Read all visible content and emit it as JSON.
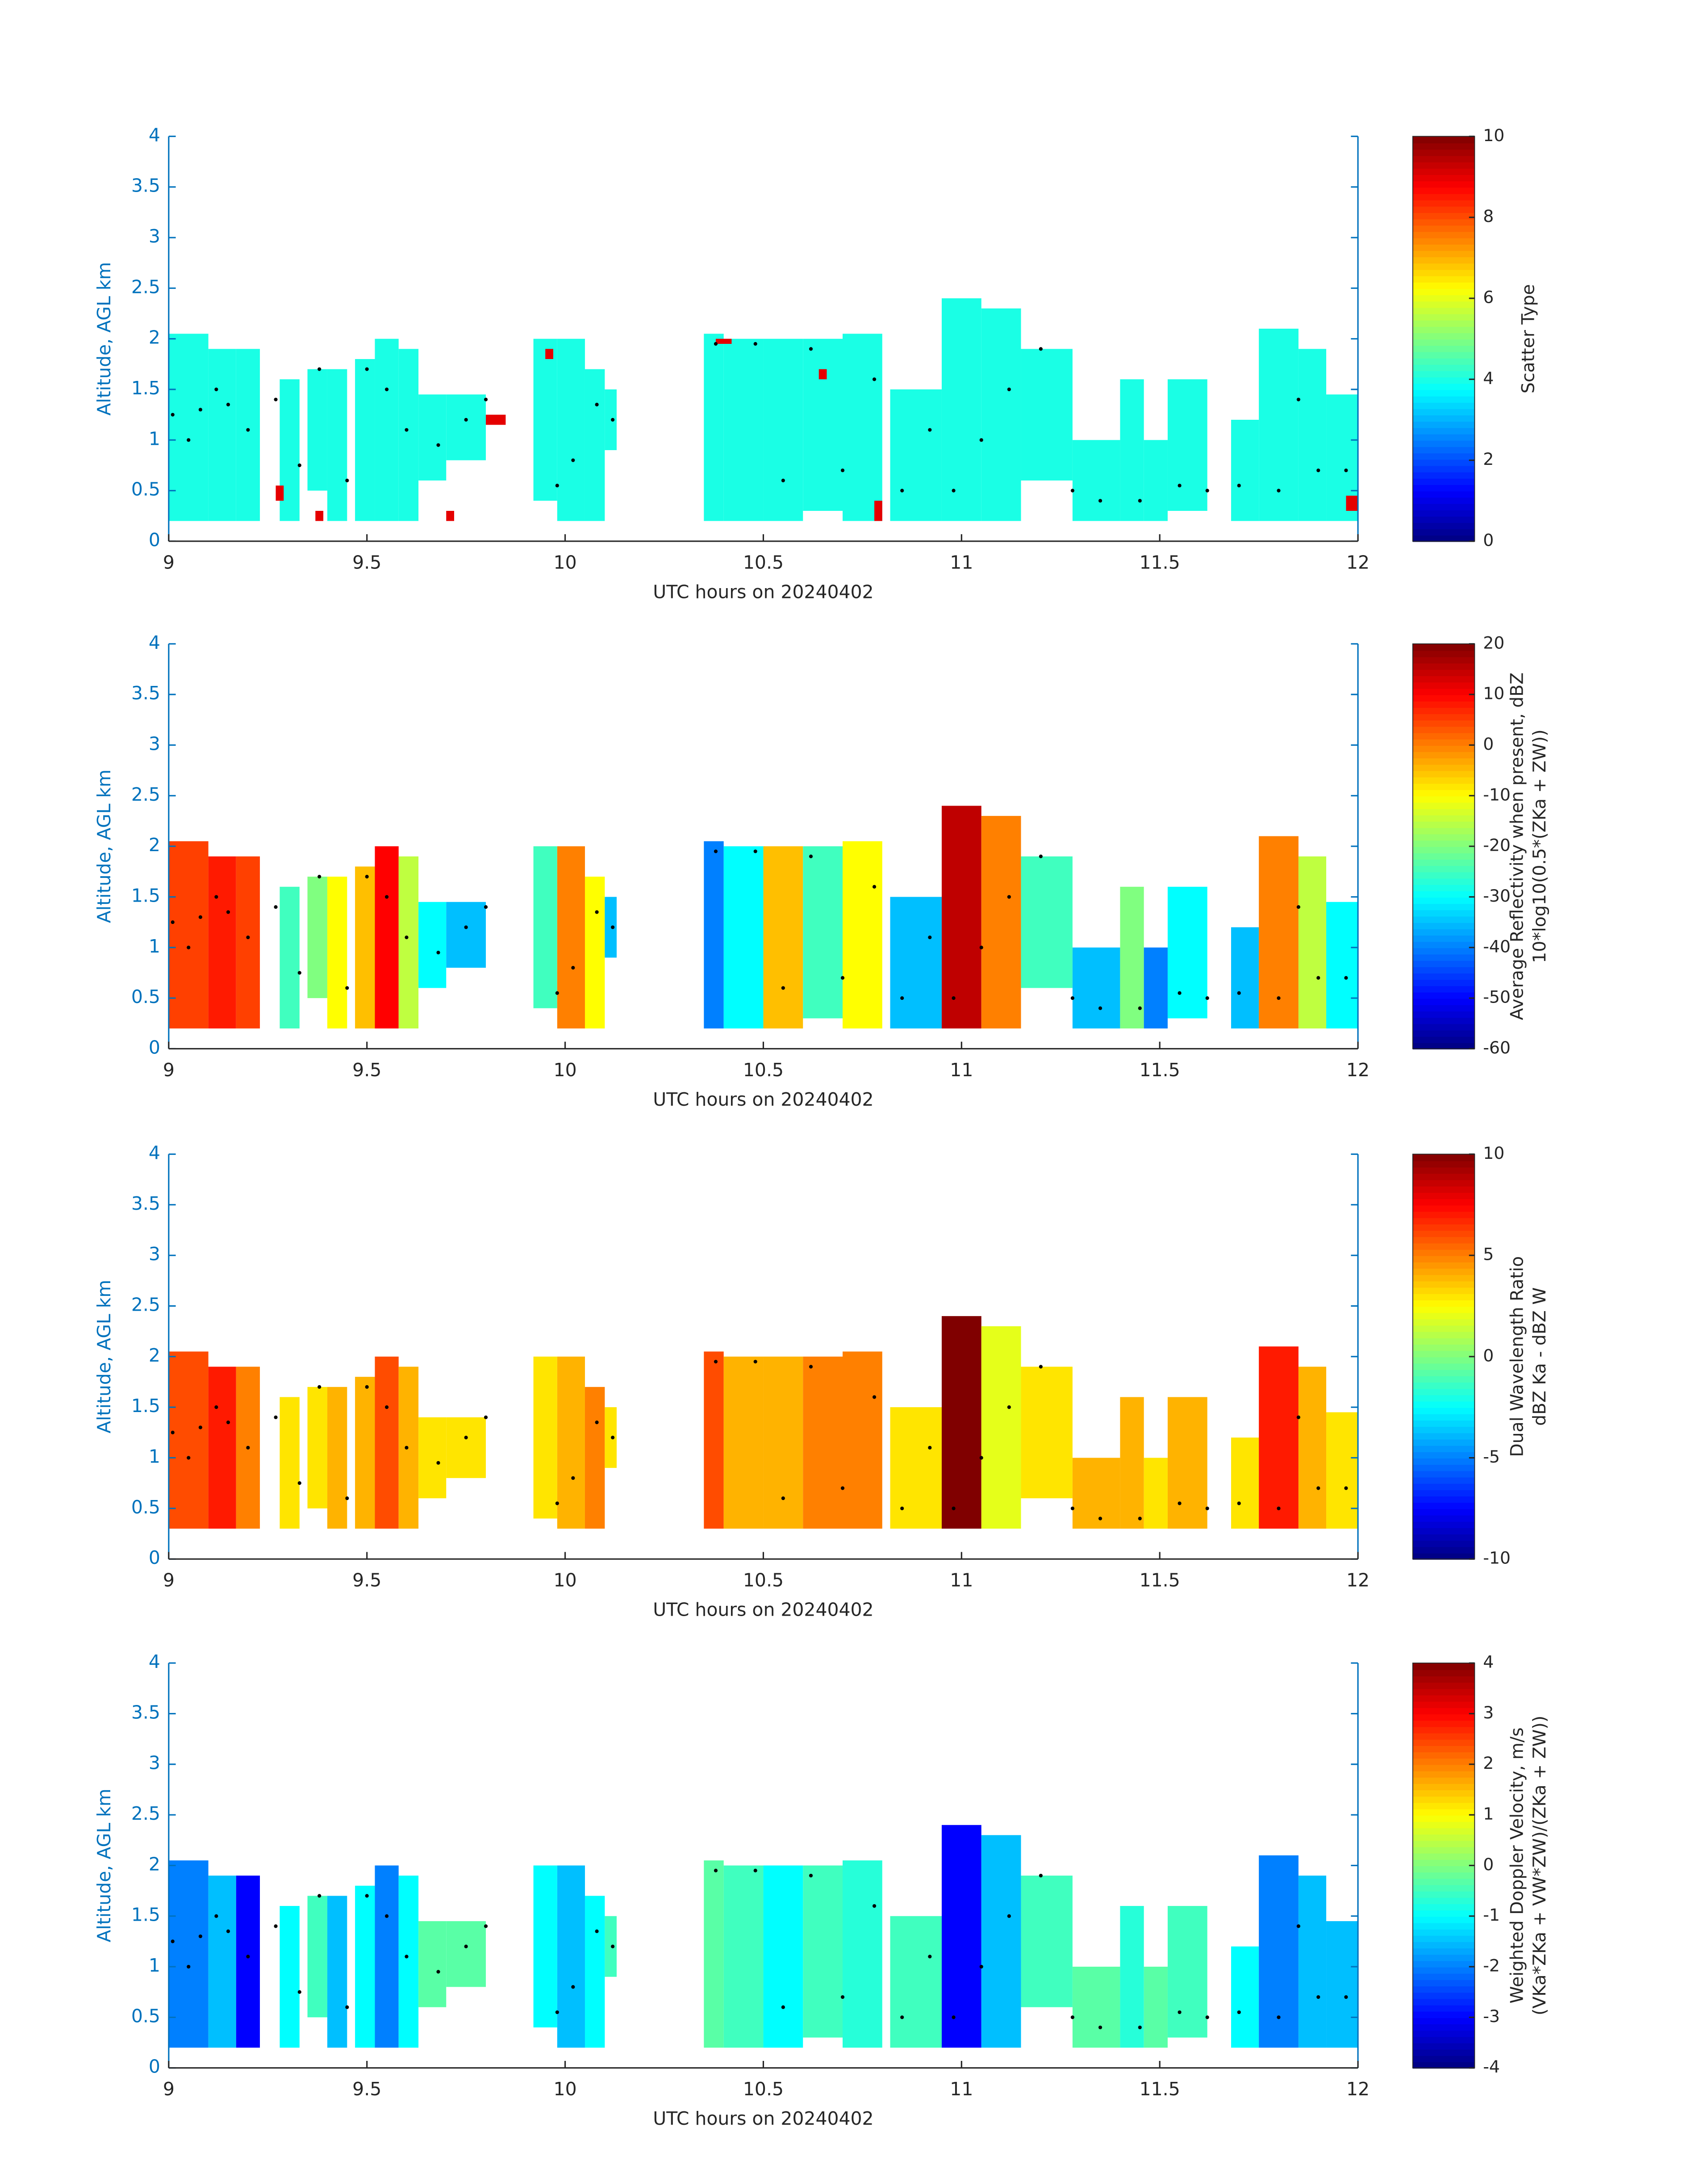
{
  "chart_data": [
    {
      "type": "heatmap",
      "xlabel": "UTC hours on 20240402",
      "ylabel": "Altitude, AGL km",
      "xlim": [
        9,
        12
      ],
      "ylim": [
        0,
        4
      ],
      "xticks": [
        9,
        9.5,
        10,
        10.5,
        11,
        11.5,
        12
      ],
      "yticks": [
        0,
        0.5,
        1,
        1.5,
        2,
        2.5,
        3,
        3.5,
        4
      ],
      "colorbar_label": [
        "Scatter Type"
      ],
      "clim": [
        0,
        10
      ],
      "cticks": [
        0,
        2,
        4,
        6,
        8,
        10
      ],
      "cells": {
        "x0": [
          9.0,
          9.1,
          9.17,
          9.28,
          9.35,
          9.4,
          9.47,
          9.52,
          9.58,
          9.63,
          9.7,
          9.92,
          9.98,
          10.05,
          10.1,
          10.35,
          10.4,
          10.5,
          10.6,
          10.7,
          10.82,
          10.95,
          11.05,
          11.15,
          11.28,
          11.4,
          11.46,
          11.52,
          11.68,
          11.75,
          11.85,
          11.92,
          9.27,
          9.37,
          9.8,
          9.95,
          10.38,
          10.64,
          10.78,
          11.97,
          9.7
        ],
        "x1": [
          9.1,
          9.17,
          9.23,
          9.33,
          9.4,
          9.45,
          9.52,
          9.58,
          9.63,
          9.7,
          9.8,
          9.98,
          10.05,
          10.1,
          10.13,
          10.4,
          10.5,
          10.6,
          10.7,
          10.8,
          10.95,
          11.05,
          11.15,
          11.28,
          11.4,
          11.46,
          11.52,
          11.62,
          11.75,
          11.85,
          11.92,
          12.0,
          9.29,
          9.39,
          9.85,
          9.97,
          10.42,
          10.66,
          10.8,
          12.0,
          9.72
        ],
        "y0": [
          0.2,
          0.2,
          0.2,
          0.2,
          0.5,
          0.2,
          0.2,
          0.2,
          0.2,
          0.6,
          0.8,
          0.4,
          0.2,
          0.2,
          0.9,
          0.2,
          0.2,
          0.2,
          0.3,
          0.2,
          0.2,
          0.2,
          0.2,
          0.6,
          0.2,
          0.2,
          0.2,
          0.3,
          0.2,
          0.2,
          0.2,
          0.2,
          0.4,
          0.2,
          1.15,
          1.8,
          1.95,
          1.6,
          0.2,
          0.3,
          0.2
        ],
        "y1": [
          2.05,
          1.9,
          1.9,
          1.6,
          1.7,
          1.7,
          1.8,
          2.0,
          1.9,
          1.45,
          1.45,
          2.0,
          2.0,
          1.7,
          1.5,
          2.05,
          2.0,
          2.0,
          2.0,
          2.05,
          1.5,
          2.4,
          2.3,
          1.9,
          1.0,
          1.6,
          1.0,
          1.6,
          1.2,
          2.1,
          1.9,
          1.45,
          0.55,
          0.3,
          1.25,
          1.9,
          2.0,
          1.7,
          0.4,
          0.45,
          0.3
        ],
        "values": [
          4,
          4,
          4,
          4,
          4,
          4,
          4,
          4,
          4,
          4,
          4,
          4,
          4,
          4,
          4,
          4,
          4,
          4,
          4,
          4,
          4,
          4,
          4,
          4,
          4,
          4,
          4,
          4,
          4,
          4,
          4,
          4,
          9,
          9,
          9,
          9,
          9,
          9,
          9,
          9,
          9
        ]
      },
      "markers": {
        "x": [
          9.01,
          9.05,
          9.08,
          9.12,
          9.15,
          9.2,
          9.27,
          9.33,
          9.38,
          9.45,
          9.5,
          9.55,
          9.6,
          9.68,
          9.75,
          9.8,
          9.98,
          10.02,
          10.08,
          10.12,
          10.38,
          10.48,
          10.55,
          10.62,
          10.7,
          10.78,
          10.85,
          10.92,
          10.98,
          11.05,
          11.12,
          11.2,
          11.28,
          11.35,
          11.45,
          11.55,
          11.62,
          11.7,
          11.8,
          11.85,
          11.9,
          11.97
        ],
        "y": [
          1.25,
          1.0,
          1.3,
          1.5,
          1.35,
          1.1,
          1.4,
          0.75,
          1.7,
          0.6,
          1.7,
          1.5,
          1.1,
          0.95,
          1.2,
          1.4,
          0.55,
          0.8,
          1.35,
          1.2,
          1.95,
          1.95,
          0.6,
          1.9,
          0.7,
          1.6,
          0.5,
          1.1,
          0.5,
          1.0,
          1.5,
          1.9,
          0.5,
          0.4,
          0.4,
          0.55,
          0.5,
          0.55,
          0.5,
          1.4,
          0.7,
          0.7
        ]
      }
    },
    {
      "type": "heatmap",
      "xlabel": "UTC hours on 20240402",
      "ylabel": "Altitude, AGL km",
      "xlim": [
        9,
        12
      ],
      "ylim": [
        0,
        4
      ],
      "xticks": [
        9,
        9.5,
        10,
        10.5,
        11,
        11.5,
        12
      ],
      "yticks": [
        0,
        0.5,
        1,
        1.5,
        2,
        2.5,
        3,
        3.5,
        4
      ],
      "colorbar_label": [
        "Average Reflectivity when present, dBZ",
        "10*log10(0.5*(ZKa + ZW))"
      ],
      "clim": [
        -60,
        20
      ],
      "cticks": [
        -60,
        -50,
        -40,
        -30,
        -20,
        -10,
        0,
        10,
        20
      ],
      "cells": {
        "x0": [
          9.0,
          9.1,
          9.17,
          9.28,
          9.35,
          9.4,
          9.47,
          9.52,
          9.58,
          9.63,
          9.7,
          9.92,
          9.98,
          10.05,
          10.1,
          10.35,
          10.4,
          10.5,
          10.6,
          10.7,
          10.82,
          10.95,
          11.05,
          11.15,
          11.28,
          11.4,
          11.46,
          11.52,
          11.68,
          11.75,
          11.85,
          11.92
        ],
        "x1": [
          9.1,
          9.17,
          9.23,
          9.33,
          9.4,
          9.45,
          9.52,
          9.58,
          9.63,
          9.7,
          9.8,
          9.98,
          10.05,
          10.1,
          10.13,
          10.4,
          10.5,
          10.6,
          10.7,
          10.8,
          10.95,
          11.05,
          11.15,
          11.28,
          11.4,
          11.46,
          11.52,
          11.62,
          11.75,
          11.85,
          11.92,
          12.0
        ],
        "y0": [
          0.2,
          0.2,
          0.2,
          0.2,
          0.5,
          0.2,
          0.2,
          0.2,
          0.2,
          0.6,
          0.8,
          0.4,
          0.2,
          0.2,
          0.9,
          0.2,
          0.2,
          0.2,
          0.3,
          0.2,
          0.2,
          0.2,
          0.2,
          0.6,
          0.2,
          0.2,
          0.2,
          0.3,
          0.2,
          0.2,
          0.2,
          0.2
        ],
        "y1": [
          2.05,
          1.9,
          1.9,
          1.6,
          1.7,
          1.7,
          1.8,
          2.0,
          1.9,
          1.45,
          1.45,
          2.0,
          2.0,
          1.7,
          1.5,
          2.05,
          2.0,
          2.0,
          2.0,
          2.05,
          1.5,
          2.4,
          2.3,
          1.9,
          1.0,
          1.6,
          1.0,
          1.6,
          1.2,
          2.1,
          1.9,
          1.45
        ],
        "values": [
          5,
          8,
          5,
          -25,
          -20,
          -10,
          -5,
          10,
          -15,
          -30,
          -35,
          -25,
          0,
          -10,
          -35,
          -40,
          -30,
          -5,
          -25,
          -10,
          -35,
          15,
          0,
          -25,
          -35,
          -20,
          -40,
          -30,
          -35,
          0,
          -15,
          -30
        ]
      },
      "markers": {
        "x": [
          9.01,
          9.05,
          9.08,
          9.12,
          9.15,
          9.2,
          9.27,
          9.33,
          9.38,
          9.45,
          9.5,
          9.55,
          9.6,
          9.68,
          9.75,
          9.8,
          9.98,
          10.02,
          10.08,
          10.12,
          10.38,
          10.48,
          10.55,
          10.62,
          10.7,
          10.78,
          10.85,
          10.92,
          10.98,
          11.05,
          11.12,
          11.2,
          11.28,
          11.35,
          11.45,
          11.55,
          11.62,
          11.7,
          11.8,
          11.85,
          11.9,
          11.97
        ],
        "y": [
          1.25,
          1.0,
          1.3,
          1.5,
          1.35,
          1.1,
          1.4,
          0.75,
          1.7,
          0.6,
          1.7,
          1.5,
          1.1,
          0.95,
          1.2,
          1.4,
          0.55,
          0.8,
          1.35,
          1.2,
          1.95,
          1.95,
          0.6,
          1.9,
          0.7,
          1.6,
          0.5,
          1.1,
          0.5,
          1.0,
          1.5,
          1.9,
          0.5,
          0.4,
          0.4,
          0.55,
          0.5,
          0.55,
          0.5,
          1.4,
          0.7,
          0.7
        ]
      }
    },
    {
      "type": "heatmap",
      "xlabel": "UTC hours on 20240402",
      "ylabel": "Altitude, AGL km",
      "xlim": [
        9,
        12
      ],
      "ylim": [
        0,
        4
      ],
      "xticks": [
        9,
        9.5,
        10,
        10.5,
        11,
        11.5,
        12
      ],
      "yticks": [
        0,
        0.5,
        1,
        1.5,
        2,
        2.5,
        3,
        3.5,
        4
      ],
      "colorbar_label": [
        "Dual Wavelength Ratio",
        "dBZ Ka - dBZ W"
      ],
      "clim": [
        -10,
        10
      ],
      "cticks": [
        -10,
        -5,
        0,
        5,
        10
      ],
      "cells": {
        "x0": [
          9.0,
          9.1,
          9.17,
          9.28,
          9.35,
          9.4,
          9.47,
          9.52,
          9.58,
          9.63,
          9.7,
          9.92,
          9.98,
          10.05,
          10.1,
          10.35,
          10.4,
          10.5,
          10.6,
          10.7,
          10.82,
          10.95,
          11.05,
          11.15,
          11.28,
          11.4,
          11.46,
          11.52,
          11.68,
          11.75,
          11.85,
          11.92
        ],
        "x1": [
          9.1,
          9.17,
          9.23,
          9.33,
          9.4,
          9.45,
          9.52,
          9.58,
          9.63,
          9.7,
          9.8,
          9.98,
          10.05,
          10.1,
          10.13,
          10.4,
          10.5,
          10.6,
          10.7,
          10.8,
          10.95,
          11.05,
          11.15,
          11.28,
          11.4,
          11.46,
          11.52,
          11.62,
          11.75,
          11.85,
          11.92,
          12.0
        ],
        "y0": [
          0.3,
          0.3,
          0.3,
          0.3,
          0.5,
          0.3,
          0.3,
          0.3,
          0.3,
          0.6,
          0.8,
          0.4,
          0.3,
          0.3,
          0.9,
          0.3,
          0.3,
          0.3,
          0.3,
          0.3,
          0.3,
          0.3,
          0.3,
          0.6,
          0.3,
          0.3,
          0.3,
          0.3,
          0.3,
          0.3,
          0.3,
          0.3
        ],
        "y1": [
          2.05,
          1.9,
          1.9,
          1.6,
          1.7,
          1.7,
          1.8,
          2.0,
          1.9,
          1.4,
          1.4,
          2.0,
          2.0,
          1.7,
          1.5,
          2.05,
          2.0,
          2.0,
          2.0,
          2.05,
          1.5,
          2.4,
          2.3,
          1.9,
          1.0,
          1.6,
          1.0,
          1.6,
          1.2,
          2.1,
          1.9,
          1.45
        ],
        "values": [
          6,
          7,
          5,
          3,
          3,
          4,
          4,
          6,
          4,
          3,
          3,
          3,
          4,
          5,
          3,
          6,
          4,
          4,
          5,
          5,
          3,
          10,
          2,
          3,
          4,
          4,
          3,
          4,
          3,
          7,
          4,
          3
        ]
      },
      "markers": {
        "x": [
          9.01,
          9.05,
          9.08,
          9.12,
          9.15,
          9.2,
          9.27,
          9.33,
          9.38,
          9.45,
          9.5,
          9.55,
          9.6,
          9.68,
          9.75,
          9.8,
          9.98,
          10.02,
          10.08,
          10.12,
          10.38,
          10.48,
          10.55,
          10.62,
          10.7,
          10.78,
          10.85,
          10.92,
          10.98,
          11.05,
          11.12,
          11.2,
          11.28,
          11.35,
          11.45,
          11.55,
          11.62,
          11.7,
          11.8,
          11.85,
          11.9,
          11.97
        ],
        "y": [
          1.25,
          1.0,
          1.3,
          1.5,
          1.35,
          1.1,
          1.4,
          0.75,
          1.7,
          0.6,
          1.7,
          1.5,
          1.1,
          0.95,
          1.2,
          1.4,
          0.55,
          0.8,
          1.35,
          1.2,
          1.95,
          1.95,
          0.6,
          1.9,
          0.7,
          1.6,
          0.5,
          1.1,
          0.5,
          1.0,
          1.5,
          1.9,
          0.5,
          0.4,
          0.4,
          0.55,
          0.5,
          0.55,
          0.5,
          1.4,
          0.7,
          0.7
        ]
      }
    },
    {
      "type": "heatmap",
      "xlabel": "UTC hours on 20240402",
      "ylabel": "Altitude, AGL km",
      "xlim": [
        9,
        12
      ],
      "ylim": [
        0,
        4
      ],
      "xticks": [
        9,
        9.5,
        10,
        10.5,
        11,
        11.5,
        12
      ],
      "yticks": [
        0,
        0.5,
        1,
        1.5,
        2,
        2.5,
        3,
        3.5,
        4
      ],
      "colorbar_label": [
        "Weighted Doppler Velocity, m/s",
        "(VKa*ZKa + VW*ZW)/(ZKa + ZW))"
      ],
      "clim": [
        -4,
        4
      ],
      "cticks": [
        -4,
        -3,
        -2,
        -1,
        0,
        1,
        2,
        3,
        4
      ],
      "cells": {
        "x0": [
          9.0,
          9.1,
          9.17,
          9.28,
          9.35,
          9.4,
          9.47,
          9.52,
          9.58,
          9.63,
          9.7,
          9.92,
          9.98,
          10.05,
          10.1,
          10.35,
          10.4,
          10.5,
          10.6,
          10.7,
          10.82,
          10.95,
          11.05,
          11.15,
          11.28,
          11.4,
          11.46,
          11.52,
          11.68,
          11.75,
          11.85,
          11.92
        ],
        "x1": [
          9.1,
          9.17,
          9.23,
          9.33,
          9.4,
          9.45,
          9.52,
          9.58,
          9.63,
          9.7,
          9.8,
          9.98,
          10.05,
          10.1,
          10.13,
          10.4,
          10.5,
          10.6,
          10.7,
          10.8,
          10.95,
          11.05,
          11.15,
          11.28,
          11.4,
          11.46,
          11.52,
          11.62,
          11.75,
          11.85,
          11.92,
          12.0
        ],
        "y0": [
          0.2,
          0.2,
          0.2,
          0.2,
          0.5,
          0.2,
          0.2,
          0.2,
          0.2,
          0.6,
          0.8,
          0.4,
          0.2,
          0.2,
          0.9,
          0.2,
          0.2,
          0.2,
          0.3,
          0.2,
          0.2,
          0.2,
          0.2,
          0.6,
          0.2,
          0.2,
          0.2,
          0.3,
          0.2,
          0.2,
          0.2,
          0.2
        ],
        "y1": [
          2.05,
          1.9,
          1.9,
          1.6,
          1.7,
          1.7,
          1.8,
          2.0,
          1.9,
          1.45,
          1.45,
          2.0,
          2.0,
          1.7,
          1.5,
          2.05,
          2.0,
          2.0,
          2.0,
          2.05,
          1.5,
          2.4,
          2.3,
          1.9,
          1.0,
          1.6,
          1.0,
          1.6,
          1.2,
          2.1,
          1.9,
          1.45
        ],
        "values": [
          -2,
          -1.5,
          -3,
          -1,
          -0.5,
          -1.5,
          -1,
          -2,
          -1,
          -0.3,
          -0.3,
          -1,
          -1.5,
          -1,
          -0.5,
          -0.3,
          -0.5,
          -1,
          -0.5,
          -0.7,
          -0.5,
          -3,
          -1.5,
          -0.5,
          -0.3,
          -0.7,
          -0.3,
          -0.5,
          -1,
          -2,
          -1.5,
          -1.5
        ]
      },
      "markers": {
        "x": [
          9.01,
          9.05,
          9.08,
          9.12,
          9.15,
          9.2,
          9.27,
          9.33,
          9.38,
          9.45,
          9.5,
          9.55,
          9.6,
          9.68,
          9.75,
          9.8,
          9.98,
          10.02,
          10.08,
          10.12,
          10.38,
          10.48,
          10.55,
          10.62,
          10.7,
          10.78,
          10.85,
          10.92,
          10.98,
          11.05,
          11.12,
          11.2,
          11.28,
          11.35,
          11.45,
          11.55,
          11.62,
          11.7,
          11.8,
          11.85,
          11.9,
          11.97
        ],
        "y": [
          1.25,
          1.0,
          1.3,
          1.5,
          1.35,
          1.1,
          1.4,
          0.75,
          1.7,
          0.6,
          1.7,
          1.5,
          1.1,
          0.95,
          1.2,
          1.4,
          0.55,
          0.8,
          1.35,
          1.2,
          1.95,
          1.95,
          0.6,
          1.9,
          0.7,
          1.6,
          0.5,
          1.1,
          0.5,
          1.0,
          1.5,
          1.9,
          0.5,
          0.4,
          0.4,
          0.55,
          0.5,
          0.55,
          0.5,
          1.4,
          0.7,
          0.7
        ]
      }
    }
  ]
}
